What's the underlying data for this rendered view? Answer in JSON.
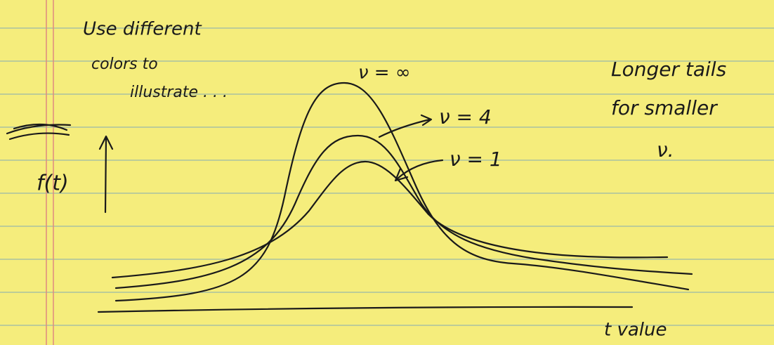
{
  "notes": {
    "left": [
      "Use different",
      "colors to",
      "illustrate . . ."
    ],
    "right": [
      "Longer tails",
      "for smaller",
      "ν."
    ]
  },
  "axes": {
    "y_label": "f(t)",
    "x_label": "t value"
  },
  "curves": [
    {
      "label": "ν = ∞"
    },
    {
      "label": "ν = 4"
    },
    {
      "label": "ν = 1"
    }
  ]
}
